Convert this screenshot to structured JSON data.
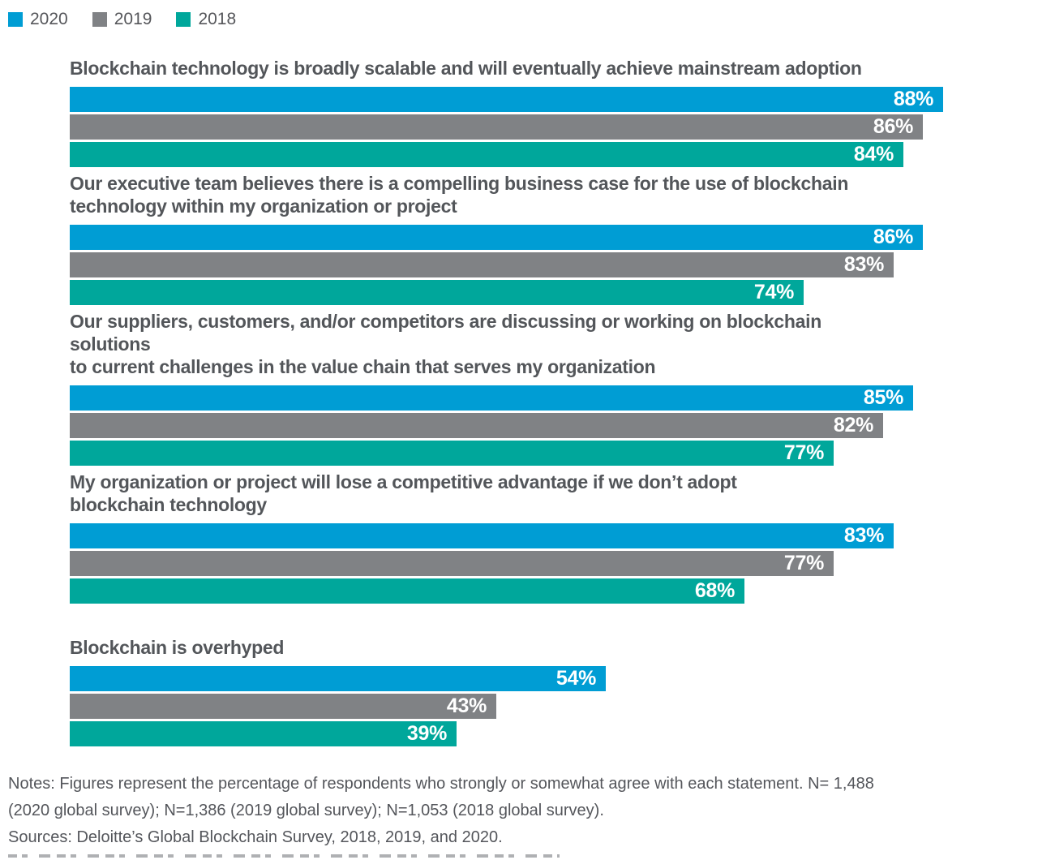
{
  "legend": {
    "items": [
      {
        "label": "2020",
        "color": "#009dd4"
      },
      {
        "label": "2019",
        "color": "#808285"
      },
      {
        "label": "2018",
        "color": "#00a79b"
      }
    ]
  },
  "chart_data": {
    "type": "bar",
    "orientation": "horizontal",
    "unit": "%",
    "xlim": [
      0,
      100
    ],
    "grid": false,
    "legend_position": "top-left",
    "value_label_format": "{value}%",
    "series_order": [
      "2020",
      "2019",
      "2018"
    ],
    "colors": {
      "2020": "#009dd4",
      "2019": "#808285",
      "2018": "#00a79b"
    },
    "groups": [
      {
        "statement": "Blockchain technology is broadly scalable and will eventually achieve mainstream adoption",
        "values": {
          "2020": 88,
          "2019": 86,
          "2018": 84
        }
      },
      {
        "statement": "Our executive team believes there is a compelling business case for the use of blockchain\ntechnology within my organization or project",
        "values": {
          "2020": 86,
          "2019": 83,
          "2018": 74
        }
      },
      {
        "statement": "Our suppliers, customers, and/or competitors are discussing or working on blockchain solutions\nto current challenges in the value chain that serves my organization",
        "values": {
          "2020": 85,
          "2019": 82,
          "2018": 77
        }
      },
      {
        "statement": "My organization or project will lose a competitive advantage if we don’t adopt\nblockchain technology",
        "values": {
          "2020": 83,
          "2019": 77,
          "2018": 68
        }
      },
      {
        "statement": "Blockchain is overhyped",
        "values": {
          "2020": 54,
          "2019": 43,
          "2018": 39
        },
        "extra_gap": true
      }
    ]
  },
  "footer": {
    "notes": "Notes: Figures represent the percentage of respondents who strongly or somewhat agree with each statement. N= 1,488\n(2020 global survey); N=1,386 (2019 global survey); N=1,053 (2018 global survey).",
    "sources": "Sources: Deloitte’s Global Blockchain Survey, 2018, 2019, and 2020."
  }
}
